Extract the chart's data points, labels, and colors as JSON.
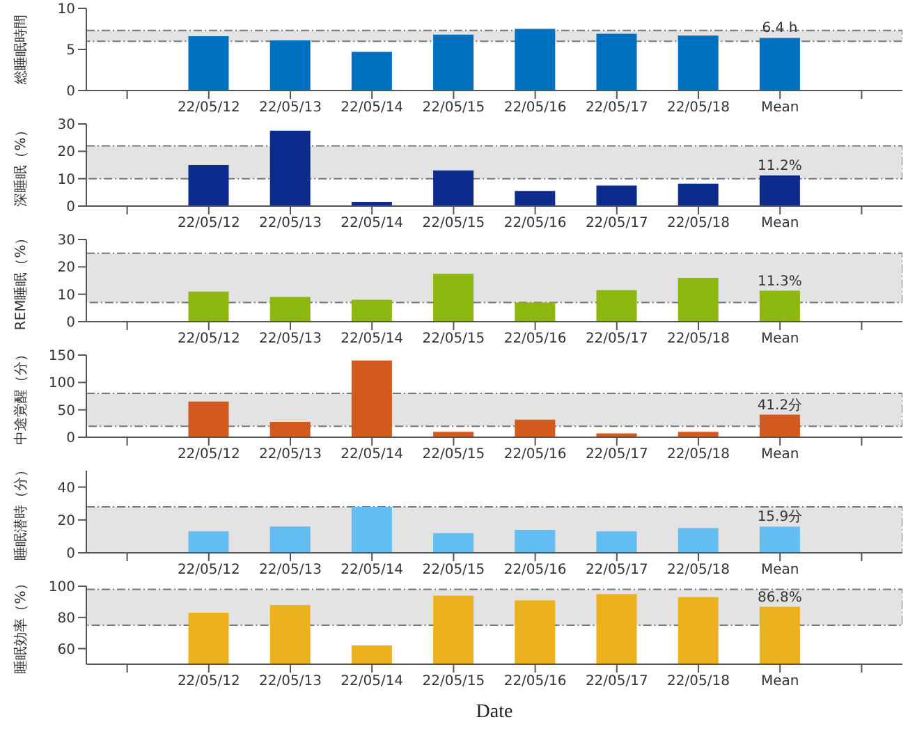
{
  "chart_data": [
    {
      "type": "bar",
      "ylabel": "総睡眠時間",
      "categories": [
        null,
        "22/05/12",
        "22/05/13",
        "22/05/14",
        "22/05/15",
        "22/05/16",
        "22/05/17",
        "22/05/18",
        "Mean",
        null
      ],
      "values": [
        null,
        6.6,
        6.1,
        4.7,
        6.8,
        7.5,
        6.9,
        6.7,
        6.4,
        null
      ],
      "value_labels": [
        null,
        null,
        null,
        null,
        null,
        null,
        null,
        null,
        "6.4 h",
        null
      ],
      "color": "#0070c0",
      "ylim": [
        0,
        10
      ],
      "yticks": [
        0,
        5,
        10
      ],
      "bands": [
        {
          "axis": "y",
          "from": 6,
          "to": 7.3,
          "color": "#e3e3e3"
        }
      ]
    },
    {
      "type": "bar",
      "ylabel": "深睡眠（%）",
      "categories": [
        null,
        "22/05/12",
        "22/05/13",
        "22/05/14",
        "22/05/15",
        "22/05/16",
        "22/05/17",
        "22/05/18",
        "Mean",
        null
      ],
      "values": [
        null,
        15,
        27.5,
        1.5,
        13,
        5.5,
        7.5,
        8.2,
        11.2,
        null
      ],
      "value_labels": [
        null,
        null,
        null,
        null,
        null,
        null,
        null,
        null,
        "11.2%",
        null
      ],
      "color": "#0c2b8c",
      "ylim": [
        0,
        30
      ],
      "yticks": [
        0,
        10,
        20,
        30
      ],
      "bands": [
        {
          "axis": "y",
          "from": 10,
          "to": 22,
          "color": "#e3e3e3"
        }
      ]
    },
    {
      "type": "bar",
      "ylabel": "REM睡眠（%）",
      "categories": [
        null,
        "22/05/12",
        "22/05/13",
        "22/05/14",
        "22/05/15",
        "22/05/16",
        "22/05/17",
        "22/05/18",
        "Mean",
        null
      ],
      "values": [
        null,
        11,
        9,
        8,
        17.5,
        7,
        11.5,
        16,
        11.3,
        null
      ],
      "value_labels": [
        null,
        null,
        null,
        null,
        null,
        null,
        null,
        null,
        "11.3%",
        null
      ],
      "color": "#8cb70f",
      "ylim": [
        0,
        30
      ],
      "yticks": [
        0,
        10,
        20,
        30
      ],
      "bands": [
        {
          "axis": "y",
          "from": 7,
          "to": 25,
          "color": "#e3e3e3"
        }
      ]
    },
    {
      "type": "bar",
      "ylabel": "中途覚醒（分）",
      "categories": [
        null,
        "22/05/12",
        "22/05/13",
        "22/05/14",
        "22/05/15",
        "22/05/16",
        "22/05/17",
        "22/05/18",
        "Mean",
        null
      ],
      "values": [
        null,
        65,
        28,
        140,
        10,
        32,
        7,
        10,
        41.2,
        null
      ],
      "value_labels": [
        null,
        null,
        null,
        null,
        null,
        null,
        null,
        null,
        "41.2分",
        null
      ],
      "color": "#d35a1e",
      "ylim": [
        0,
        150
      ],
      "yticks": [
        0,
        50,
        100,
        150
      ],
      "bands": [
        {
          "axis": "y",
          "from": 20,
          "to": 80,
          "color": "#e3e3e3"
        }
      ]
    },
    {
      "type": "bar",
      "ylabel": "睡眠潜時（分）",
      "categories": [
        null,
        "22/05/12",
        "22/05/13",
        "22/05/14",
        "22/05/15",
        "22/05/16",
        "22/05/17",
        "22/05/18",
        "Mean",
        null
      ],
      "values": [
        null,
        13,
        16,
        28,
        12,
        14,
        13,
        15,
        15.9,
        null
      ],
      "value_labels": [
        null,
        null,
        null,
        null,
        null,
        null,
        null,
        null,
        "15.9分",
        null
      ],
      "color": "#63bdf0",
      "ylim": [
        0,
        50
      ],
      "yticks": [
        0,
        20,
        40
      ],
      "bands": [
        {
          "axis": "y",
          "from": 0,
          "to": 28,
          "color": "#e3e3e3"
        }
      ]
    },
    {
      "type": "bar",
      "ylabel": "睡眠効率（%）",
      "xlabel": "Date",
      "categories": [
        null,
        "22/05/12",
        "22/05/13",
        "22/05/14",
        "22/05/15",
        "22/05/16",
        "22/05/17",
        "22/05/18",
        "Mean",
        null
      ],
      "values": [
        null,
        83,
        88,
        62,
        94,
        91,
        95,
        93,
        86.8,
        null
      ],
      "value_labels": [
        null,
        null,
        null,
        null,
        null,
        null,
        null,
        null,
        "86.8%",
        null
      ],
      "color": "#ecb11f",
      "ylim": [
        50,
        100
      ],
      "yticks": [
        60,
        80,
        100
      ],
      "bands": [
        {
          "axis": "y",
          "from": 75,
          "to": 98,
          "color": "#e3e3e3"
        }
      ]
    }
  ]
}
